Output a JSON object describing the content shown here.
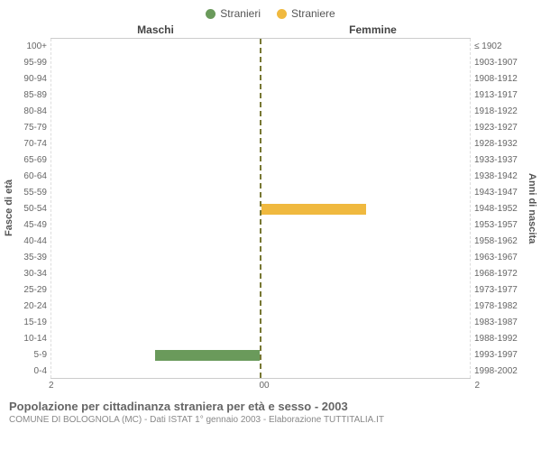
{
  "legend": {
    "male": {
      "label": "Stranieri",
      "color": "#6a9a5b"
    },
    "female": {
      "label": "Straniere",
      "color": "#f0b93f"
    }
  },
  "columns": {
    "left": "Maschi",
    "right": "Femmine"
  },
  "axes": {
    "left_title": "Fasce di età",
    "right_title": "Anni di nascita",
    "x_max": 2,
    "x_ticks_left": [
      "2",
      "0"
    ],
    "x_ticks_right": [
      "0",
      "2"
    ],
    "center_dash_color": "#777733",
    "grid_color": "#dddddd"
  },
  "rows": [
    {
      "age": "100+",
      "birth": "≤ 1902",
      "m": 0,
      "f": 0
    },
    {
      "age": "95-99",
      "birth": "1903-1907",
      "m": 0,
      "f": 0
    },
    {
      "age": "90-94",
      "birth": "1908-1912",
      "m": 0,
      "f": 0
    },
    {
      "age": "85-89",
      "birth": "1913-1917",
      "m": 0,
      "f": 0
    },
    {
      "age": "80-84",
      "birth": "1918-1922",
      "m": 0,
      "f": 0
    },
    {
      "age": "75-79",
      "birth": "1923-1927",
      "m": 0,
      "f": 0
    },
    {
      "age": "70-74",
      "birth": "1928-1932",
      "m": 0,
      "f": 0
    },
    {
      "age": "65-69",
      "birth": "1933-1937",
      "m": 0,
      "f": 0
    },
    {
      "age": "60-64",
      "birth": "1938-1942",
      "m": 0,
      "f": 0
    },
    {
      "age": "55-59",
      "birth": "1943-1947",
      "m": 0,
      "f": 0
    },
    {
      "age": "50-54",
      "birth": "1948-1952",
      "m": 0,
      "f": 1
    },
    {
      "age": "45-49",
      "birth": "1953-1957",
      "m": 0,
      "f": 0
    },
    {
      "age": "40-44",
      "birth": "1958-1962",
      "m": 0,
      "f": 0
    },
    {
      "age": "35-39",
      "birth": "1963-1967",
      "m": 0,
      "f": 0
    },
    {
      "age": "30-34",
      "birth": "1968-1972",
      "m": 0,
      "f": 0
    },
    {
      "age": "25-29",
      "birth": "1973-1977",
      "m": 0,
      "f": 0
    },
    {
      "age": "20-24",
      "birth": "1978-1982",
      "m": 0,
      "f": 0
    },
    {
      "age": "15-19",
      "birth": "1983-1987",
      "m": 0,
      "f": 0
    },
    {
      "age": "10-14",
      "birth": "1988-1992",
      "m": 0,
      "f": 0
    },
    {
      "age": "5-9",
      "birth": "1993-1997",
      "m": 1,
      "f": 0
    },
    {
      "age": "0-4",
      "birth": "1998-2002",
      "m": 0,
      "f": 0
    }
  ],
  "footer": {
    "title": "Popolazione per cittadinanza straniera per età e sesso - 2003",
    "sub": "COMUNE DI BOLOGNOLA (MC) - Dati ISTAT 1° gennaio 2003 - Elaborazione TUTTITALIA.IT"
  }
}
